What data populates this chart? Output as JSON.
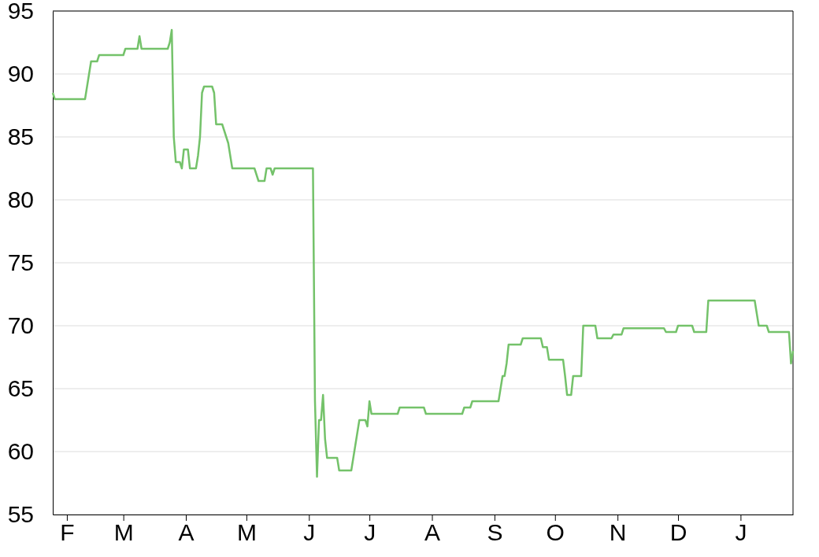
{
  "chart_data": {
    "type": "line",
    "ylim": [
      55,
      95
    ],
    "yticks": [
      55,
      60,
      65,
      70,
      75,
      80,
      85,
      90,
      95
    ],
    "grid": "y",
    "line_style": "solid",
    "marker": "none",
    "categories": [
      null,
      null,
      null,
      null,
      null,
      null,
      null,
      "F",
      null,
      null,
      null,
      null,
      null,
      null,
      null,
      null,
      null,
      null,
      null,
      null,
      null,
      null,
      null,
      null,
      null,
      null,
      null,
      null,
      null,
      null,
      null,
      null,
      null,
      null,
      null,
      "M",
      null,
      null,
      null,
      null,
      null,
      null,
      null,
      null,
      null,
      null,
      null,
      null,
      null,
      null,
      null,
      null,
      null,
      null,
      null,
      null,
      null,
      null,
      null,
      null,
      null,
      null,
      null,
      null,
      null,
      null,
      "A",
      null,
      null,
      null,
      null,
      null,
      null,
      null,
      null,
      null,
      null,
      null,
      null,
      null,
      null,
      null,
      null,
      null,
      null,
      null,
      null,
      null,
      null,
      null,
      null,
      null,
      null,
      null,
      null,
      null,
      "M",
      null,
      null,
      null,
      null,
      null,
      null,
      null,
      null,
      null,
      null,
      null,
      null,
      null,
      null,
      null,
      null,
      null,
      null,
      null,
      null,
      null,
      null,
      null,
      null,
      null,
      null,
      null,
      null,
      null,
      null,
      "J",
      null,
      null,
      null,
      null,
      null,
      null,
      null,
      null,
      null,
      null,
      null,
      null,
      null,
      null,
      null,
      null,
      null,
      null,
      null,
      null,
      null,
      null,
      null,
      null,
      null,
      null,
      null,
      null,
      null,
      "J",
      null,
      null,
      null,
      null,
      null,
      null,
      null,
      null,
      null,
      null,
      null,
      null,
      null,
      null,
      null,
      null,
      null,
      null,
      null,
      null,
      null,
      null,
      null,
      null,
      null,
      null,
      null,
      null,
      null,
      null,
      "A",
      null,
      null,
      null,
      null,
      null,
      null,
      null,
      null,
      null,
      null,
      null,
      null,
      null,
      null,
      null,
      null,
      null,
      null,
      null,
      null,
      null,
      null,
      null,
      null,
      null,
      null,
      null,
      null,
      null,
      null,
      "S",
      null,
      null,
      null,
      null,
      null,
      null,
      null,
      null,
      null,
      null,
      null,
      null,
      null,
      null,
      null,
      null,
      null,
      null,
      null,
      null,
      null,
      null,
      null,
      null,
      null,
      null,
      null,
      null,
      null,
      "O",
      null,
      null,
      null,
      null,
      null,
      null,
      null,
      null,
      null,
      null,
      null,
      null,
      null,
      null,
      null,
      null,
      null,
      null,
      null,
      null,
      null,
      null,
      null,
      null,
      null,
      null,
      null,
      null,
      null,
      null,
      "N",
      null,
      null,
      null,
      null,
      null,
      null,
      null,
      null,
      null,
      null,
      null,
      null,
      null,
      null,
      null,
      null,
      null,
      null,
      null,
      null,
      null,
      null,
      null,
      null,
      null,
      null,
      null,
      null,
      null,
      "D",
      null,
      null,
      null,
      null,
      null,
      null,
      null,
      null,
      null,
      null,
      null,
      null,
      null,
      null,
      null,
      null,
      null,
      null,
      null,
      null,
      null,
      null,
      null,
      null,
      null,
      null,
      null,
      null,
      null,
      null,
      "J",
      null,
      null,
      null,
      null,
      null,
      null,
      null,
      null,
      null,
      null,
      null,
      null,
      null,
      null,
      null,
      null,
      null,
      null,
      null,
      null,
      null,
      null,
      null,
      null,
      null,
      null
    ],
    "series": [
      {
        "color": "#74c26a",
        "values": [
          88.5,
          88,
          88,
          88,
          88,
          88,
          88,
          88,
          88,
          88,
          88,
          88,
          88,
          88,
          88,
          88,
          88,
          89,
          90,
          91,
          91,
          91,
          91,
          91.5,
          91.5,
          91.5,
          91.5,
          91.5,
          91.5,
          91.5,
          91.5,
          91.5,
          91.5,
          91.5,
          91.5,
          91.5,
          92,
          92,
          92,
          92,
          92,
          92,
          92,
          93,
          92,
          92,
          92,
          92,
          92,
          92,
          92,
          92,
          92,
          92,
          92,
          92,
          92,
          92,
          92.5,
          93.5,
          85,
          83,
          83,
          83,
          82.5,
          84,
          84,
          84,
          82.5,
          82.5,
          82.5,
          82.5,
          83.5,
          85,
          88.5,
          89,
          89,
          89,
          89,
          89,
          88.5,
          86,
          86,
          86,
          86,
          85.5,
          85,
          84.5,
          83.5,
          82.5,
          82.5,
          82.5,
          82.5,
          82.5,
          82.5,
          82.5,
          82.5,
          82.5,
          82.5,
          82.5,
          82.5,
          82,
          81.5,
          81.5,
          81.5,
          81.5,
          82.5,
          82.5,
          82.5,
          82,
          82.5,
          82.5,
          82.5,
          82.5,
          82.5,
          82.5,
          82.5,
          82.5,
          82.5,
          82.5,
          82.5,
          82.5,
          82.5,
          82.5,
          82.5,
          82.5,
          82.5,
          82.5,
          82.5,
          82.5,
          64,
          58,
          62.5,
          62.5,
          64.5,
          61,
          59.5,
          59.5,
          59.5,
          59.5,
          59.5,
          59.5,
          58.5,
          58.5,
          58.5,
          58.5,
          58.5,
          58.5,
          58.5,
          59.5,
          60.5,
          61.5,
          62.5,
          62.5,
          62.5,
          62.5,
          62,
          64,
          63,
          63,
          63,
          63,
          63,
          63,
          63,
          63,
          63,
          63,
          63,
          63,
          63,
          63,
          63.5,
          63.5,
          63.5,
          63.5,
          63.5,
          63.5,
          63.5,
          63.5,
          63.5,
          63.5,
          63.5,
          63.5,
          63.5,
          63,
          63,
          63,
          63,
          63,
          63,
          63,
          63,
          63,
          63,
          63,
          63,
          63,
          63,
          63,
          63,
          63,
          63,
          63,
          63.5,
          63.5,
          63.5,
          63.5,
          64,
          64,
          64,
          64,
          64,
          64,
          64,
          64,
          64,
          64,
          64,
          64,
          64,
          64,
          65,
          66,
          66,
          67,
          68.5,
          68.5,
          68.5,
          68.5,
          68.5,
          68.5,
          68.5,
          69,
          69,
          69,
          69,
          69,
          69,
          69,
          69,
          69,
          69,
          68.3,
          68.3,
          68.3,
          67.3,
          67.3,
          67.3,
          67.3,
          67.3,
          67.3,
          67.3,
          67.3,
          66,
          64.5,
          64.5,
          64.5,
          66,
          66,
          66,
          66,
          66,
          70,
          70,
          70,
          70,
          70,
          70,
          70,
          69,
          69,
          69,
          69,
          69,
          69,
          69,
          69,
          69.3,
          69.3,
          69.3,
          69.3,
          69.3,
          69.8,
          69.8,
          69.8,
          69.8,
          69.8,
          69.8,
          69.8,
          69.8,
          69.8,
          69.8,
          69.8,
          69.8,
          69.8,
          69.8,
          69.8,
          69.8,
          69.8,
          69.8,
          69.8,
          69.8,
          69.8,
          69.5,
          69.5,
          69.5,
          69.5,
          69.5,
          69.5,
          70,
          70,
          70,
          70,
          70,
          70,
          70,
          70,
          69.5,
          69.5,
          69.5,
          69.5,
          69.5,
          69.5,
          69.5,
          72,
          72,
          72,
          72,
          72,
          72,
          72,
          72,
          72,
          72,
          72,
          72,
          72,
          72,
          72,
          72,
          72,
          72,
          72,
          72,
          72,
          72,
          72,
          72,
          71,
          70,
          70,
          70,
          70,
          70,
          69.5,
          69.5,
          69.5,
          69.5,
          69.5,
          69.5,
          69.5,
          69.5,
          69.5,
          69.5,
          69.5,
          67,
          68
        ]
      }
    ]
  }
}
